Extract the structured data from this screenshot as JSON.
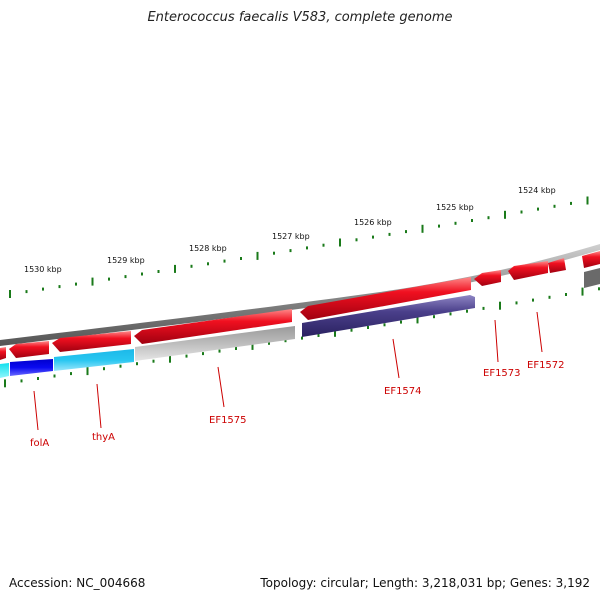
{
  "title": "Enterococcus faecalis V583, complete genome",
  "footer": {
    "accession": "Accession: NC_004668",
    "topology": "Topology: circular; Length: 3,218,031 bp; Genes: 3,192"
  },
  "colors": {
    "forward_gene": "#e3001a",
    "reverse_gene": "#4a3f8a",
    "backbone": "#808080",
    "ticks": "#1a7a1a",
    "label": "#cc0000"
  },
  "scale_labels": [
    "1530 kbp",
    "1529 kbp",
    "1528 kbp",
    "1527 kbp",
    "1526 kbp",
    "1525 kbp",
    "1524 kbp"
  ],
  "gene_labels": [
    "folA",
    "thyA",
    "EF1575",
    "EF1574",
    "EF1573",
    "EF1572"
  ]
}
